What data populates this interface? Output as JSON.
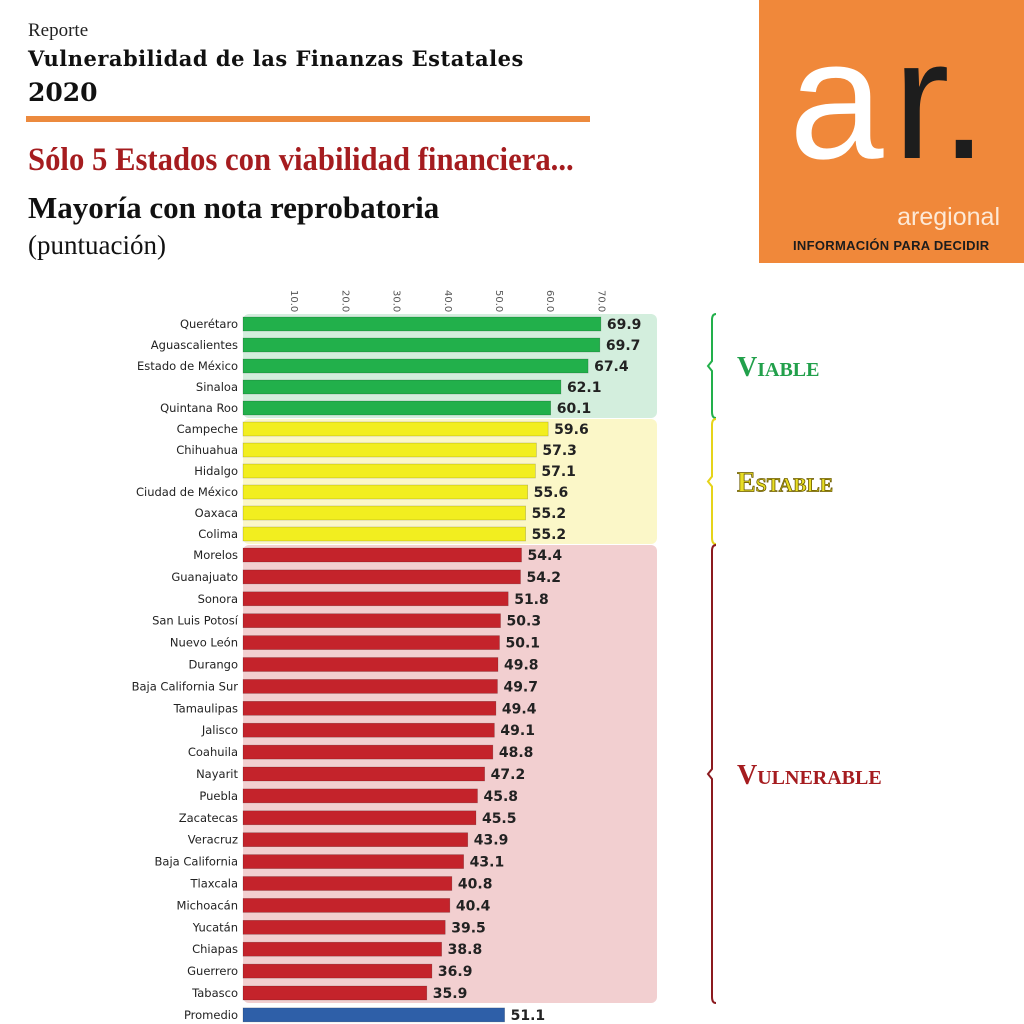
{
  "header": {
    "report_label": "Reporte",
    "report_title": "Vulnerabilidad de las Finanzas Estatales",
    "year": "2020",
    "headline": "Sólo 5 Estados con viabilidad financiera...",
    "subheadline": "Mayoría con nota reprobatoria",
    "unit": "(puntuación)"
  },
  "logo": {
    "mark": "ar.",
    "brand": "aregional",
    "tagline": "INFORMACIÓN PARA DECIDIR"
  },
  "colors": {
    "viable": "#22b04b",
    "estable": "#f2ee1f",
    "vulnerable": "#c4232b",
    "promedio": "#2e5fa8",
    "orange": "#f0883a"
  },
  "chart_data": {
    "type": "bar",
    "orientation": "horizontal",
    "xlim": [
      0,
      70
    ],
    "ticks": [
      "10.0",
      "20.0",
      "30.0",
      "40.0",
      "50.0",
      "60.0",
      "70.0"
    ],
    "grid": false,
    "categories": [
      "Querétaro",
      "Aguascalientes",
      "Estado de México",
      "Sinaloa",
      "Quintana Roo",
      "Campeche",
      "Chihuahua",
      "Hidalgo",
      "Ciudad de México",
      "Oaxaca",
      "Colima",
      "Morelos",
      "Guanajuato",
      "Sonora",
      "San Luis Potosí",
      "Nuevo León",
      "Durango",
      "Baja California Sur",
      "Tamaulipas",
      "Jalisco",
      "Coahuila",
      "Nayarit",
      "Puebla",
      "Zacatecas",
      "Veracruz",
      "Baja California",
      "Tlaxcala",
      "Michoacán",
      "Yucatán",
      "Chiapas",
      "Guerrero",
      "Tabasco",
      "Promedio"
    ],
    "values": [
      69.9,
      69.7,
      67.4,
      62.1,
      60.1,
      59.6,
      57.3,
      57.1,
      55.6,
      55.2,
      55.2,
      54.4,
      54.2,
      51.8,
      50.3,
      50.1,
      49.8,
      49.7,
      49.4,
      49.1,
      48.8,
      47.2,
      45.8,
      45.5,
      43.9,
      43.1,
      40.8,
      40.4,
      39.5,
      38.8,
      36.9,
      35.9,
      51.1
    ],
    "value_labels": [
      "69.9",
      "69.7",
      "67.4",
      "62.1",
      "60.1",
      "59.6",
      "57.3",
      "57.1",
      "55.6",
      "55.2",
      "55.2",
      "54.4",
      "54.2",
      "51.8",
      "50.3",
      "50.1",
      "49.8",
      "49.7",
      "49.4",
      "49.1",
      "48.8",
      "47.2",
      "45.8",
      "45.5",
      "43.9",
      "43.1",
      "40.8",
      "40.4",
      "39.5",
      "38.8",
      "36.9",
      "35.9",
      "51.1"
    ],
    "groups": [
      {
        "label": "Viable",
        "start": 0,
        "count": 5,
        "color_key": "viable"
      },
      {
        "label": "Estable",
        "start": 5,
        "count": 6,
        "color_key": "estable"
      },
      {
        "label": "Vulnerable",
        "start": 11,
        "count": 21,
        "color_key": "vulnerable"
      }
    ]
  }
}
